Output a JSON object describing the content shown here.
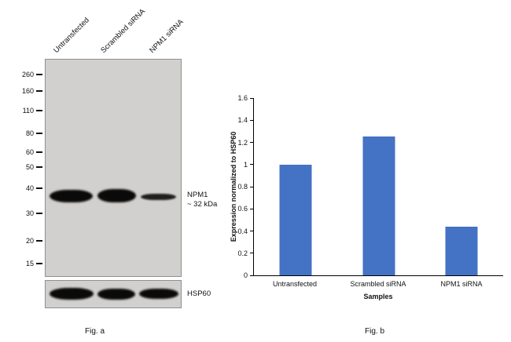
{
  "figure_a": {
    "caption": "Fig. a",
    "lane_labels": [
      "Untransfected",
      "Scrambled siRNA",
      "NPM1 siRNA"
    ],
    "mw_markers": [
      "260",
      "160",
      "110",
      "80",
      "60",
      "50",
      "40",
      "30",
      "20",
      "15"
    ],
    "band_label": "NPM1",
    "band_size": "~ 32 kDa",
    "loading_control_label": "HSP60"
  },
  "figure_b": {
    "caption": "Fig. b"
  },
  "chart_data": {
    "type": "bar",
    "title": "",
    "categories": [
      "Untransfected",
      "Scrambled siRNA",
      "NPM1 siRNA"
    ],
    "values": [
      1.0,
      1.25,
      0.44
    ],
    "xlabel": "Samples",
    "ylabel": "Expression normalized to HSP60",
    "ylim": [
      0,
      1.6
    ],
    "ytick_step": 0.2,
    "bar_color": "#4472c4",
    "grid": false,
    "legend": false
  }
}
